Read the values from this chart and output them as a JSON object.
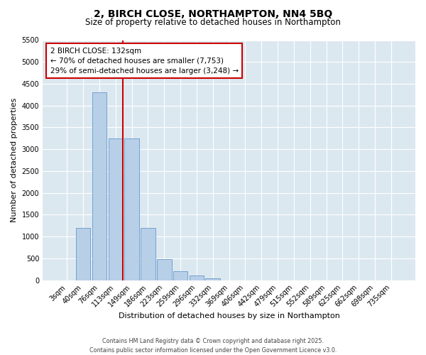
{
  "title_line1": "2, BIRCH CLOSE, NORTHAMPTON, NN4 5BQ",
  "title_line2": "Size of property relative to detached houses in Northampton",
  "xlabel": "Distribution of detached houses by size in Northampton",
  "ylabel": "Number of detached properties",
  "categories": [
    "3sqm",
    "40sqm",
    "76sqm",
    "113sqm",
    "149sqm",
    "186sqm",
    "223sqm",
    "259sqm",
    "296sqm",
    "332sqm",
    "369sqm",
    "406sqm",
    "442sqm",
    "479sqm",
    "515sqm",
    "552sqm",
    "589sqm",
    "625sqm",
    "662sqm",
    "698sqm",
    "735sqm"
  ],
  "values": [
    0,
    1200,
    4300,
    3250,
    3250,
    1200,
    480,
    200,
    100,
    50,
    0,
    0,
    0,
    0,
    0,
    0,
    0,
    0,
    0,
    0,
    0
  ],
  "bar_color": "#b8cfe8",
  "bar_edge_color": "#6699cc",
  "vline_bin_index": 3,
  "vline_color": "#cc0000",
  "annotation_text": "2 BIRCH CLOSE: 132sqm\n← 70% of detached houses are smaller (7,753)\n29% of semi-detached houses are larger (3,248) →",
  "annotation_box_edgecolor": "#cc0000",
  "ylim_max": 5500,
  "yticks": [
    0,
    500,
    1000,
    1500,
    2000,
    2500,
    3000,
    3500,
    4000,
    4500,
    5000,
    5500
  ],
  "bg_color": "#dce8f0",
  "grid_color": "#ffffff",
  "footer_line1": "Contains HM Land Registry data © Crown copyright and database right 2025.",
  "footer_line2": "Contains public sector information licensed under the Open Government Licence v3.0.",
  "title1_fontsize": 10,
  "title2_fontsize": 8.5,
  "axis_label_fontsize": 8,
  "tick_fontsize": 7,
  "annotation_fontsize": 7.5,
  "footer_fontsize": 5.8
}
